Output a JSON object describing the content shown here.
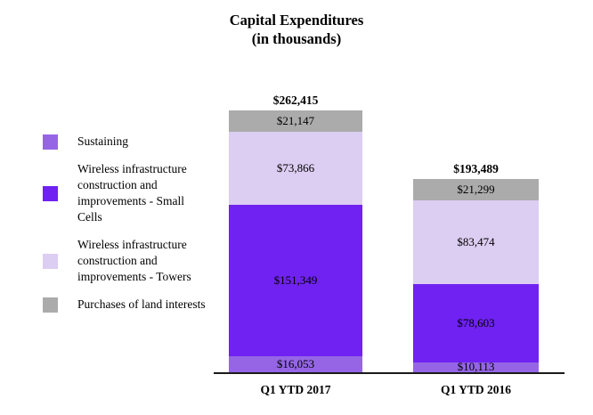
{
  "chart_data": {
    "type": "bar",
    "stacked": true,
    "title": "Capital Expenditures",
    "subtitle": "(in thousands)",
    "legend_position": "left",
    "grid": false,
    "baseline_color": "#1a1a1a",
    "categories": [
      "Q1 YTD 2017",
      "Q1 YTD 2016"
    ],
    "series": [
      {
        "name": "Sustaining",
        "color": "#9565e6",
        "values": [
          16053,
          10113
        ],
        "value_labels": [
          "$16,053",
          "$10,113"
        ]
      },
      {
        "name": "Wireless infrastructure construction and improvements - Small Cells",
        "color": "#6f22f2",
        "values": [
          151349,
          78603
        ],
        "value_labels": [
          "$151,349",
          "$78,603"
        ]
      },
      {
        "name": "Wireless infrastructure construction and improvements - Towers",
        "color": "#dccdf2",
        "values": [
          73866,
          83474
        ],
        "value_labels": [
          "$73,866",
          "$83,474"
        ]
      },
      {
        "name": "Purchases of land interests",
        "color": "#ababab",
        "values": [
          21147,
          21299
        ],
        "value_labels": [
          "$21,147",
          "$21,299"
        ]
      }
    ],
    "totals": {
      "values": [
        262415,
        193489
      ],
      "labels": [
        "$262,415",
        "$193,489"
      ]
    }
  }
}
